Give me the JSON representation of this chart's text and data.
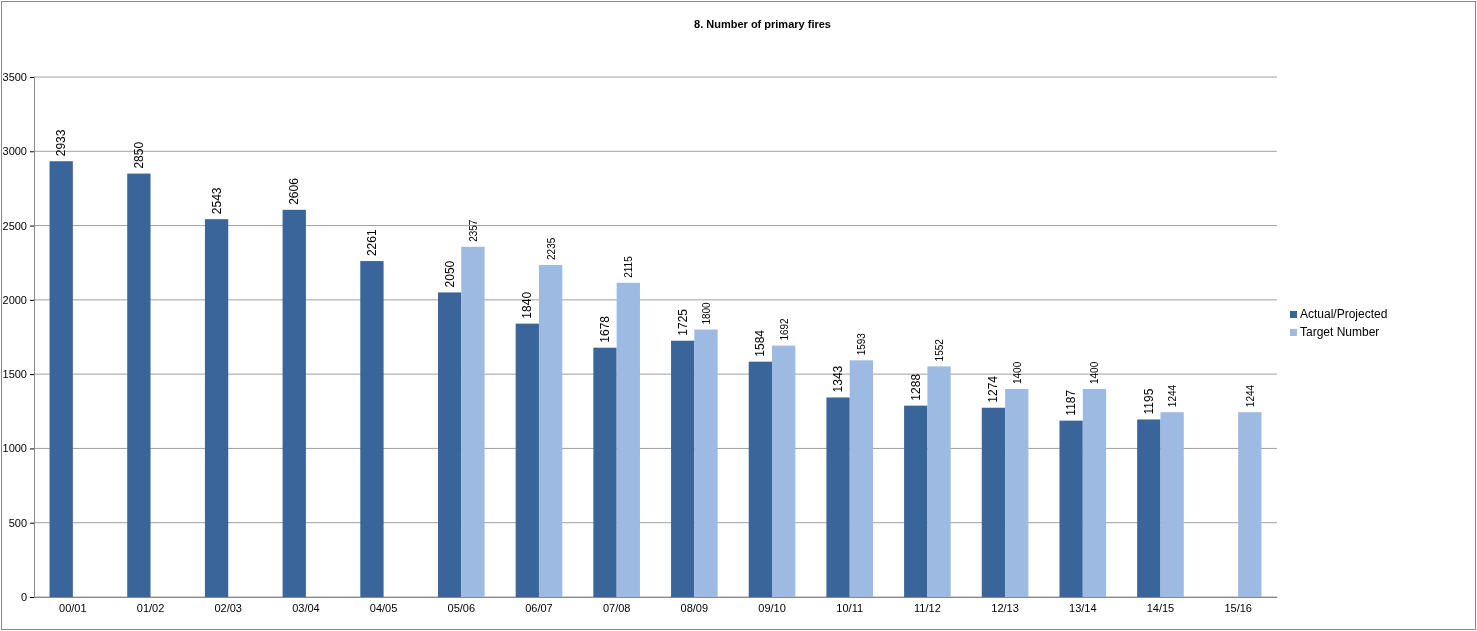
{
  "chart_data": {
    "type": "bar",
    "title": "8. Number of primary fires",
    "categories": [
      "00/01",
      "01/02",
      "02/03",
      "03/04",
      "04/05",
      "05/06",
      "06/07",
      "07/08",
      "08/09",
      "09/10",
      "10/11",
      "11/12",
      "12/13",
      "13/14",
      "14/15",
      "15/16"
    ],
    "series": [
      {
        "name": "Actual/Projected",
        "color": "#3a659a",
        "values": [
          2933,
          2850,
          2543,
          2606,
          2261,
          2050,
          1840,
          1678,
          1725,
          1584,
          1343,
          1288,
          1274,
          1187,
          1195,
          null
        ]
      },
      {
        "name": "Target Number",
        "color": "#9dbae2",
        "values": [
          null,
          null,
          null,
          null,
          null,
          2357,
          2235,
          2115,
          1800,
          1692,
          1593,
          1552,
          1400,
          1400,
          1244,
          1244
        ]
      }
    ],
    "ylim": [
      0,
      3500
    ],
    "yticks": [
      0,
      500,
      1000,
      1500,
      2000,
      2500,
      3000,
      3500
    ],
    "grid": "y",
    "legend": "right",
    "data_labels": true
  }
}
